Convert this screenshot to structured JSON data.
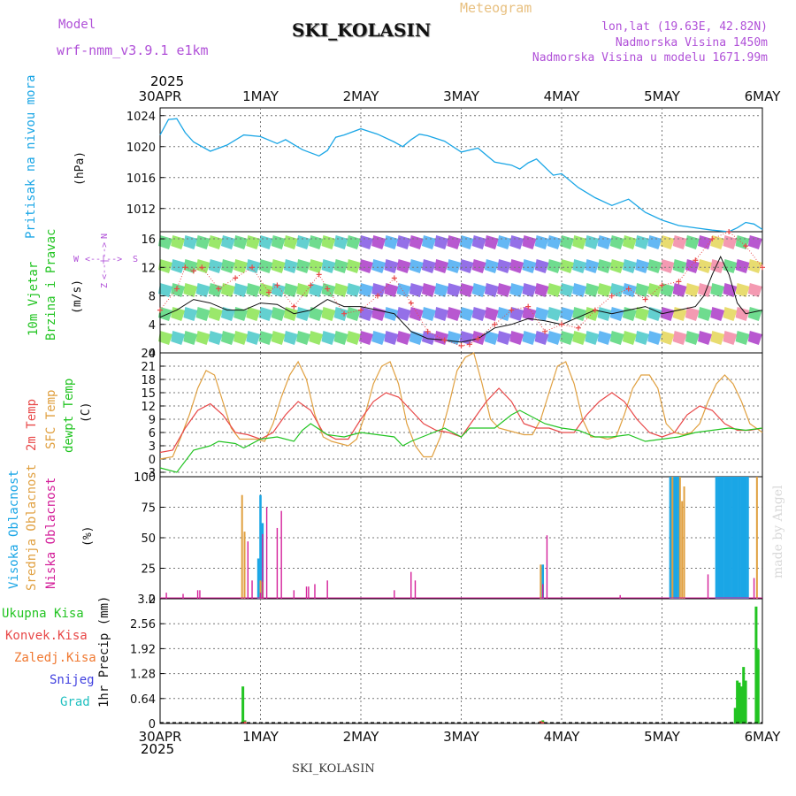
{
  "header": {
    "model_label": "Model",
    "model_name": "wrf-nmm_v3.9.1 e1km",
    "title": "SKI_KOLASIN",
    "meteogram": "Meteogram",
    "lonlat": "lon,lat (19.63E, 42.82N)",
    "elevation": "Nadmorska Visina 1450m",
    "model_elevation": "Nadmorska Visina u modelu 1671.99m",
    "year_top": "2025",
    "year_bottom": "2025",
    "footer": "SKI_KOLASIN",
    "watermark": "made by Angel"
  },
  "wind_legend": {
    "w": "W",
    "s": "S",
    "z": "Z",
    "n": "N",
    "arrow_h": "<--|-->",
    "arrow_v": "<--|-->"
  },
  "panel_labels": {
    "pressure": [
      "Pritisak na nivou mora"
    ],
    "pressure_unit": "(hPa)",
    "wind": [
      "10m Vjetar",
      "Brzina i Pravac"
    ],
    "wind_unit": "(m/s)",
    "temp": [
      "2m Temp",
      "SFC Temp",
      "dewpt Temp"
    ],
    "temp_unit": "(C)",
    "cloud": [
      "Visoka Oblacnost",
      "Srednja Oblacnost",
      "Niska Oblacnost"
    ],
    "cloud_unit": "(%)",
    "precip_legend": [
      "Ukupna Kisa",
      "Konvek.Kisa",
      "Zaledj.Kisa",
      "Snijeg",
      "Grad"
    ],
    "precip_unit": "1hr Precip (mm)"
  },
  "colors": {
    "pressure": "#1aa6e6",
    "wind_speed": "#111111",
    "gust": "#e84848",
    "t2m": "#e84848",
    "tsfc": "#e0a040",
    "dewpt": "#22c422",
    "cloud_high": "#1aa6e6",
    "cloud_mid": "#e0a040",
    "cloud_low": "#d4209a",
    "rain_total": "#22c422",
    "rain_conv": "#e84848",
    "rain_freezing": "#f07830",
    "snow": "#4040e0",
    "hail": "#20c0c0",
    "label_purple": "#b050d8",
    "label_orange": "#e8c080"
  },
  "chart_data": [
    {
      "type": "line",
      "name": "pressure",
      "x_range_hours": [
        0,
        144
      ],
      "x_ticks": [
        "30APR",
        "1MAY",
        "2MAY",
        "3MAY",
        "4MAY",
        "5MAY",
        "6MAY"
      ],
      "yticks": [
        1012,
        1016,
        1020,
        1024
      ],
      "ylim": [
        1009,
        1025
      ],
      "grid": true,
      "series": [
        {
          "x": [
            0,
            2,
            4,
            6,
            8,
            12,
            16,
            20,
            24,
            28,
            30,
            34,
            38,
            40,
            42,
            44,
            48,
            52,
            56,
            58,
            60,
            62,
            64,
            68,
            72,
            76,
            80,
            84,
            86,
            88,
            90,
            94,
            96,
            100,
            104,
            108,
            112,
            116,
            120,
            124,
            128,
            132,
            136,
            138,
            140,
            142,
            144
          ],
          "values": [
            1021.5,
            1023.5,
            1023.6,
            1021.8,
            1020.6,
            1019.4,
            1020.2,
            1021.5,
            1021.3,
            1020.4,
            1020.9,
            1019.6,
            1018.8,
            1019.5,
            1021.2,
            1021.5,
            1022.3,
            1021.6,
            1020.6,
            1020.0,
            1020.9,
            1021.6,
            1021.4,
            1020.7,
            1019.3,
            1019.8,
            1018.0,
            1017.6,
            1017.1,
            1017.9,
            1018.4,
            1016.3,
            1016.5,
            1014.7,
            1013.4,
            1012.4,
            1013.2,
            1011.5,
            1010.5,
            1009.8,
            1009.5,
            1009.2,
            1009.0,
            1009.5,
            1010.2,
            1010.0,
            1009.3
          ]
        }
      ]
    },
    {
      "type": "line",
      "name": "wind",
      "yticks": [
        0,
        4,
        8,
        12,
        16
      ],
      "ylim": [
        0,
        17
      ],
      "grid": true,
      "series": [
        {
          "name": "speed",
          "x": [
            0,
            4,
            8,
            12,
            16,
            20,
            24,
            28,
            32,
            36,
            40,
            44,
            48,
            52,
            56,
            60,
            64,
            68,
            72,
            76,
            80,
            84,
            88,
            92,
            96,
            100,
            104,
            108,
            112,
            116,
            120,
            124,
            128,
            130,
            132,
            134,
            136,
            138,
            140,
            144
          ],
          "values": [
            5,
            6,
            7.5,
            7,
            6,
            6,
            7,
            6.8,
            5.5,
            6,
            7.5,
            6.5,
            6.5,
            6,
            5.5,
            3,
            2,
            1.8,
            1.5,
            2,
            3.5,
            4,
            4.8,
            4.5,
            4,
            5,
            6,
            5.5,
            6,
            6.5,
            5.5,
            6,
            6.5,
            8,
            11,
            13.5,
            11,
            7,
            5.5,
            6
          ]
        },
        {
          "name": "gust",
          "x": [
            0,
            4,
            6,
            8,
            10,
            14,
            18,
            22,
            26,
            28,
            32,
            36,
            38,
            40,
            44,
            48,
            52,
            56,
            60,
            64,
            68,
            72,
            74,
            76,
            80,
            84,
            88,
            92,
            96,
            100,
            104,
            108,
            112,
            116,
            120,
            124,
            128,
            132,
            136,
            140,
            144
          ],
          "values": [
            6,
            9,
            12,
            11.5,
            12,
            9,
            10.5,
            12,
            8.5,
            9.5,
            6.5,
            9.5,
            11,
            9,
            5.5,
            6,
            8,
            10.5,
            7,
            3,
            1.8,
            1,
            1.2,
            2,
            4,
            6,
            6.5,
            3,
            4,
            3.5,
            6,
            8,
            9,
            7.5,
            9.5,
            10,
            13,
            16,
            17,
            15,
            12
          ]
        }
      ]
    },
    {
      "type": "line",
      "name": "temperature",
      "yticks": [
        -3,
        0,
        3,
        6,
        9,
        12,
        15,
        18,
        21,
        24
      ],
      "ylim": [
        -4,
        24
      ],
      "grid": true,
      "series": [
        {
          "name": "2m",
          "x": [
            0,
            3,
            6,
            9,
            12,
            15,
            18,
            21,
            24,
            27,
            30,
            33,
            36,
            39,
            42,
            45,
            48,
            51,
            54,
            57,
            60,
            63,
            66,
            69,
            72,
            75,
            78,
            81,
            84,
            87,
            90,
            93,
            96,
            99,
            102,
            105,
            108,
            111,
            114,
            117,
            120,
            123,
            126,
            129,
            132,
            135,
            138,
            141,
            144
          ],
          "values": [
            1.5,
            2,
            7,
            11,
            12.5,
            10,
            6,
            5.5,
            4.5,
            6,
            10,
            13,
            11,
            6,
            4.5,
            4.5,
            9,
            13,
            15,
            14,
            11,
            8,
            6.5,
            6,
            5,
            9,
            13,
            16,
            13,
            8,
            7,
            7,
            6,
            6,
            10,
            13,
            15,
            13,
            9,
            6,
            5,
            6,
            10,
            12,
            11,
            8,
            6.5,
            6.5,
            7
          ]
        },
        {
          "name": "sfc",
          "x": [
            0,
            3,
            5,
            7,
            9,
            11,
            13,
            15,
            17,
            19,
            21,
            23,
            25,
            27,
            29,
            31,
            33,
            35,
            37,
            39,
            41,
            43,
            45,
            47,
            49,
            51,
            53,
            55,
            57,
            59,
            61,
            63,
            65,
            67,
            69,
            71,
            73,
            75,
            77,
            79,
            81,
            83,
            85,
            87,
            89,
            91,
            93,
            95,
            97,
            99,
            101,
            103,
            105,
            107,
            109,
            111,
            113,
            115,
            117,
            119,
            121,
            123,
            125,
            127,
            129,
            131,
            133,
            135,
            137,
            139,
            141,
            144
          ],
          "values": [
            0,
            0.5,
            5,
            10,
            16,
            20,
            19,
            13,
            7,
            4.5,
            4.5,
            4.5,
            4,
            8,
            14,
            19,
            22,
            18,
            10,
            5,
            4,
            3.5,
            3,
            4.5,
            10,
            17,
            21,
            22,
            17,
            8,
            3,
            0.5,
            0.5,
            5,
            12,
            20,
            23,
            24,
            17,
            9,
            7,
            6.5,
            6,
            5.5,
            5.5,
            9,
            15,
            21,
            22,
            17,
            9,
            5,
            5,
            4.5,
            5,
            10,
            16,
            19,
            19,
            16,
            8,
            6,
            5.5,
            6,
            8,
            13,
            17,
            19,
            17,
            13,
            8,
            6
          ]
        },
        {
          "name": "dewpt",
          "x": [
            0,
            4,
            8,
            12,
            14,
            18,
            20,
            24,
            28,
            32,
            34,
            36,
            40,
            44,
            48,
            52,
            56,
            58,
            60,
            64,
            68,
            70,
            72,
            74,
            76,
            80,
            84,
            86,
            88,
            92,
            96,
            100,
            104,
            108,
            112,
            116,
            120,
            124,
            128,
            132,
            136,
            140,
            144
          ],
          "values": [
            -2,
            -3,
            2,
            3,
            4,
            3.5,
            2.5,
            4.5,
            5,
            4,
            6.5,
            8,
            5.5,
            5,
            6,
            5.5,
            5,
            3,
            4,
            5.5,
            7,
            6,
            5,
            7,
            7,
            7,
            10,
            11,
            10,
            8,
            7,
            6.5,
            5,
            5,
            5.5,
            4,
            4.5,
            5,
            6,
            6.5,
            7,
            6.5,
            7
          ]
        }
      ]
    },
    {
      "type": "bar",
      "name": "cloud cover",
      "yticks": [
        0,
        25,
        50,
        75,
        100
      ],
      "ylim": [
        0,
        100
      ],
      "grid": true,
      "series": [
        {
          "name": "high",
          "bars": [
            [
              23.5,
              33
            ],
            [
              24,
              85
            ],
            [
              24.5,
              62
            ],
            [
              91.5,
              28
            ],
            [
              122,
              100
            ],
            [
              122.5,
              100
            ],
            [
              123,
              100
            ],
            [
              123.5,
              100
            ],
            [
              124,
              100
            ],
            [
              133,
              100
            ],
            [
              133.5,
              100
            ],
            [
              134,
              100
            ],
            [
              134.5,
              100
            ],
            [
              135,
              100
            ],
            [
              135.5,
              100
            ],
            [
              136,
              100
            ],
            [
              136.5,
              100
            ],
            [
              137,
              100
            ],
            [
              137.5,
              100
            ],
            [
              138,
              100
            ],
            [
              138.5,
              100
            ],
            [
              139,
              100
            ],
            [
              139.5,
              100
            ],
            [
              140,
              100
            ],
            [
              140.5,
              100
            ]
          ]
        },
        {
          "name": "mid",
          "bars": [
            [
              19.6,
              85
            ],
            [
              20.2,
              55
            ],
            [
              24,
              15
            ],
            [
              24.5,
              14
            ],
            [
              91,
              28
            ],
            [
              122.5,
              100
            ],
            [
              124.3,
              100
            ],
            [
              124.8,
              80
            ],
            [
              125.3,
              92
            ],
            [
              142.7,
              100
            ]
          ]
        },
        {
          "name": "low",
          "bars": [
            [
              1.5,
              5
            ],
            [
              5.5,
              4
            ],
            [
              9,
              7
            ],
            [
              9.5,
              7
            ],
            [
              21,
              47
            ],
            [
              22,
              15
            ],
            [
              24,
              5
            ],
            [
              24.5,
              53
            ],
            [
              25.5,
              75
            ],
            [
              28,
              58
            ],
            [
              29,
              72
            ],
            [
              32,
              7
            ],
            [
              35,
              10
            ],
            [
              35.5,
              10
            ],
            [
              37,
              12
            ],
            [
              40,
              15
            ],
            [
              56,
              7
            ],
            [
              60,
              22
            ],
            [
              61,
              15
            ],
            [
              91.5,
              12
            ],
            [
              92.5,
              52
            ],
            [
              110,
              3
            ],
            [
              131,
              20
            ],
            [
              142,
              17
            ]
          ]
        }
      ]
    },
    {
      "type": "bar",
      "name": "precipitation",
      "yticks": [
        0,
        0.64,
        1.28,
        1.92,
        2.56,
        3.2
      ],
      "ylim": [
        0,
        3.2
      ],
      "grid": true,
      "series": [
        {
          "name": "total",
          "bars": [
            [
              19.8,
              0.95
            ],
            [
              20.3,
              0.08
            ],
            [
              91,
              0.06
            ],
            [
              91.5,
              0.08
            ],
            [
              137.5,
              0.4
            ],
            [
              138,
              1.1
            ],
            [
              138.5,
              1.05
            ],
            [
              139,
              0.95
            ],
            [
              139.5,
              1.45
            ],
            [
              140,
              1.1
            ],
            [
              142.5,
              3.0
            ],
            [
              143,
              1.9
            ]
          ]
        },
        {
          "name": "convective",
          "bars": [
            [
              19.8,
              0.02
            ],
            [
              20.3,
              0.05
            ],
            [
              91,
              0.06
            ],
            [
              91.5,
              0.04
            ]
          ]
        },
        {
          "name": "snow",
          "bars": []
        }
      ]
    }
  ]
}
